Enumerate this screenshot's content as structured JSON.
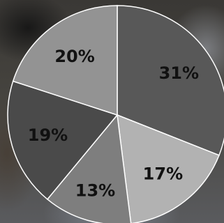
{
  "chart_data": {
    "type": "pie",
    "title": "",
    "start_angle_deg": 0,
    "direction": "clockwise",
    "slices": [
      {
        "label": "31%",
        "value": 31,
        "color": "#585858"
      },
      {
        "label": "17%",
        "value": 17,
        "color": "#b2b2b2"
      },
      {
        "label": "13%",
        "value": 13,
        "color": "#7e7e7e"
      },
      {
        "label": "19%",
        "value": 19,
        "color": "#4a4a4a"
      },
      {
        "label": "20%",
        "value": 20,
        "color": "#939393"
      }
    ],
    "legend": "none",
    "data_labels": "inside"
  }
}
